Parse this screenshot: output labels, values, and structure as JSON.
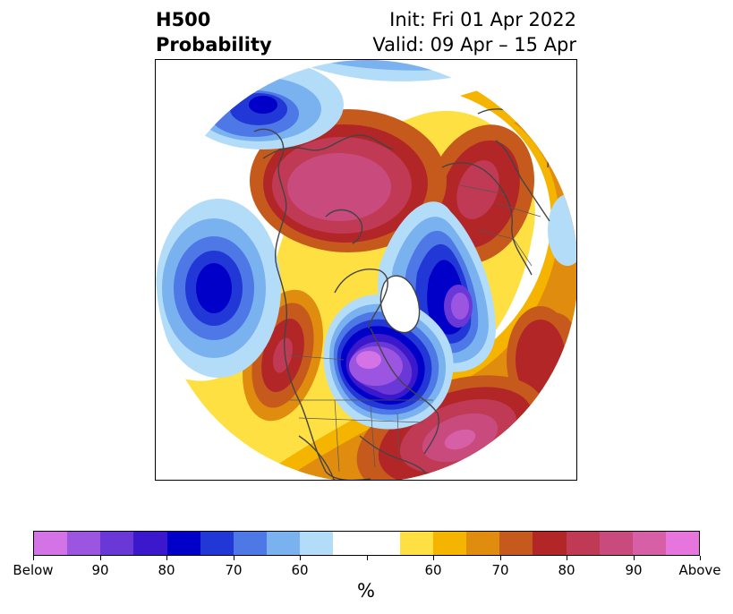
{
  "header": {
    "title_line1": "H500",
    "title_line2": "Probability",
    "init": "Init: Fri 01 Apr 2022",
    "valid": "Valid: 09 Apr – 15 Apr"
  },
  "map": {
    "projection": "north-polar-stereographic",
    "basemap": "coastlines-and-borders",
    "field": "500 hPa height anomaly probability",
    "colors": {
      "coast": "#444444",
      "outside": "#ffffff"
    },
    "anomaly_centers": [
      {
        "name": "north-pacific-low",
        "sign": "below",
        "category": "80"
      },
      {
        "name": "central-north-america-low",
        "sign": "below",
        "category": "Below"
      },
      {
        "name": "north-atlantic-low",
        "sign": "below",
        "category": "90"
      },
      {
        "name": "canadian-arctic-high",
        "sign": "above",
        "category": "90"
      },
      {
        "name": "european-high",
        "sign": "above",
        "category": "80"
      },
      {
        "name": "northeast-pacific-high",
        "sign": "above",
        "category": "80"
      },
      {
        "name": "atlantic-high",
        "sign": "above",
        "category": "90"
      },
      {
        "name": "eastern-atlantic-high",
        "sign": "above",
        "category": "80"
      }
    ]
  },
  "colorbar": {
    "colors": [
      "#d373e6",
      "#9c55e0",
      "#6b38d8",
      "#3c18cd",
      "#0000c8",
      "#2238d6",
      "#4d78e6",
      "#7ab2f0",
      "#b3dcf9",
      "#ffffff",
      "#ffffff",
      "#fee043",
      "#f4b400",
      "#e08c0e",
      "#c65a1d",
      "#b22628",
      "#c03a55",
      "#c94b7e",
      "#d65fa5",
      "#e676dd"
    ],
    "tick_labels": [
      "Below",
      "90",
      "80",
      "70",
      "60",
      "",
      "60",
      "70",
      "80",
      "90",
      "Above"
    ],
    "label": "%"
  }
}
